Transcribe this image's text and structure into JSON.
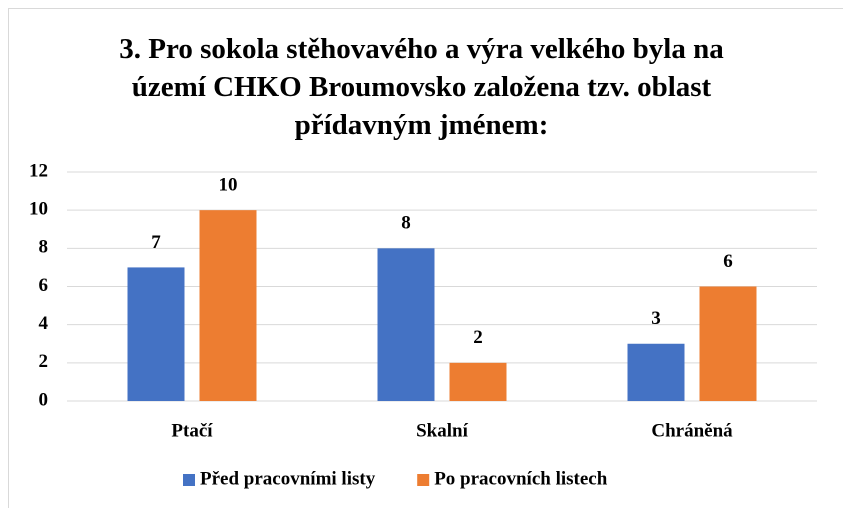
{
  "chart_data": {
    "type": "bar",
    "title": "3. Pro sokola stěhovavého a výra velkého byla na území CHKO Broumovsko založena tzv. oblast přídavným jménem:",
    "categories": [
      "Ptačí",
      "Skalní",
      "Chráněná"
    ],
    "series": [
      {
        "name": "Před pracovními listy",
        "color": "#4472c4",
        "values": [
          7,
          8,
          3
        ]
      },
      {
        "name": "Po pracovních listech",
        "color": "#ed7d31",
        "values": [
          10,
          2,
          6
        ]
      }
    ],
    "ylim": [
      0,
      12
    ],
    "yticks": [
      0,
      2,
      4,
      6,
      8,
      10,
      12
    ],
    "grid": true,
    "legend": "bottom"
  }
}
